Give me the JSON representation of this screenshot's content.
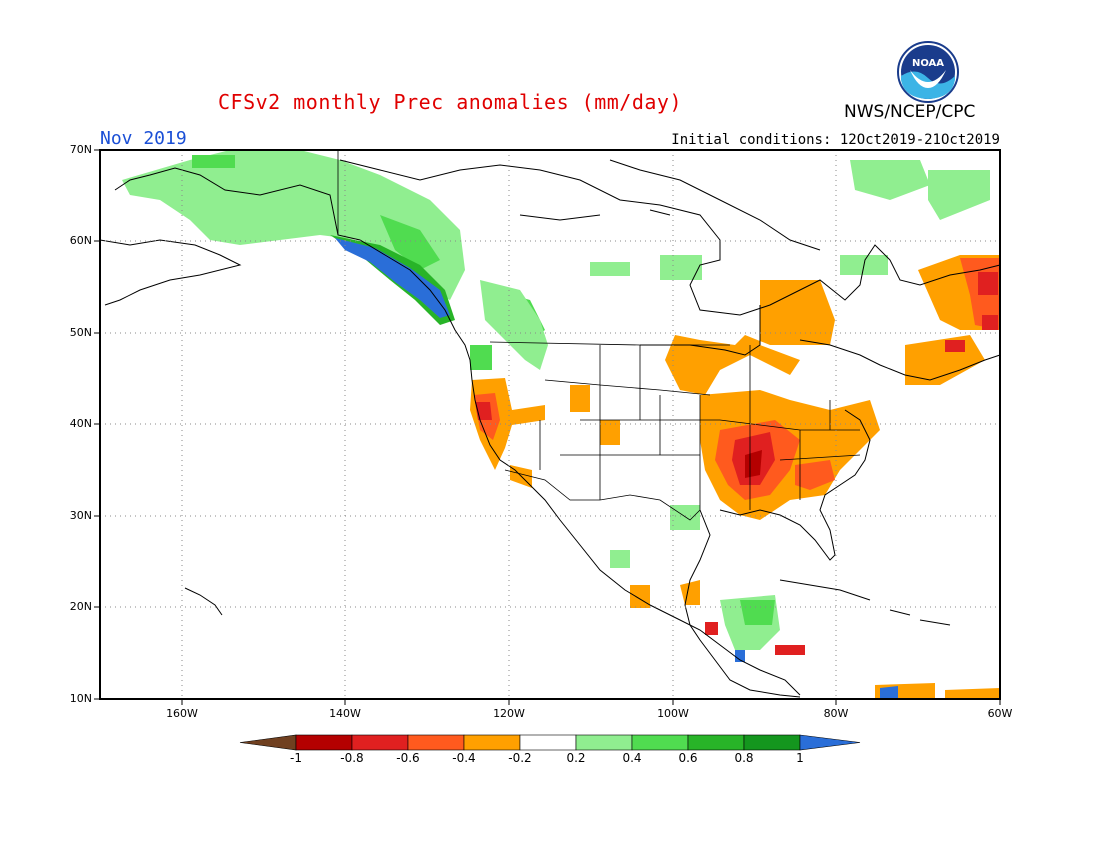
{
  "header": {
    "title": "CFSv2 monthly Prec anomalies (mm/day)",
    "month": "Nov 2019",
    "initial_conditions": "Initial conditions: 12Oct2019-21Oct2019",
    "agency": "NWS/NCEP/CPC",
    "logo_text": "NOAA"
  },
  "map": {
    "lat_labels": [
      "70N",
      "60N",
      "50N",
      "40N",
      "30N",
      "20N",
      "10N"
    ],
    "lon_labels": [
      "160W",
      "140W",
      "120W",
      "100W",
      "80W",
      "60W"
    ]
  },
  "colorbar": {
    "labels": [
      "-1",
      "-0.8",
      "-0.6",
      "-0.4",
      "-0.2",
      "0.2",
      "0.4",
      "0.6",
      "0.8",
      "1"
    ],
    "colors": [
      "#704020",
      "#b40000",
      "#e02020",
      "#ff5a1e",
      "#ffa000",
      "#ffffff",
      "#90ee90",
      "#50dc50",
      "#28b428",
      "#14961e",
      "#2a6ed8"
    ]
  }
}
